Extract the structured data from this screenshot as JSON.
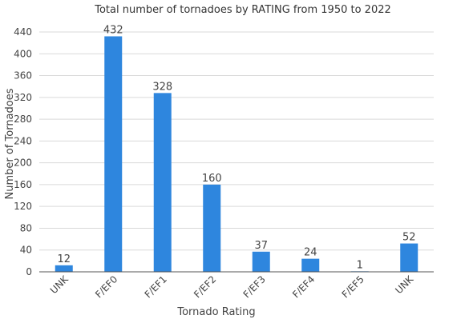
{
  "chart_data": {
    "type": "bar",
    "title": "Total number of tornadoes by RATING from 1950 to 2022",
    "xlabel": "Tornado Rating",
    "ylabel": "Number of Tornadoes",
    "categories": [
      "UNK",
      "F/EF0",
      "F/EF1",
      "F/EF2",
      "F/EF3",
      "F/EF4",
      "F/EF5",
      "UNK"
    ],
    "values": [
      12,
      432,
      328,
      160,
      37,
      24,
      1,
      52
    ],
    "ylim": [
      0,
      440
    ],
    "yticks": [
      0,
      40,
      80,
      120,
      160,
      200,
      240,
      280,
      320,
      360,
      400,
      440
    ],
    "grid": true,
    "data_labels": true,
    "bar_color": "#2e86de"
  }
}
